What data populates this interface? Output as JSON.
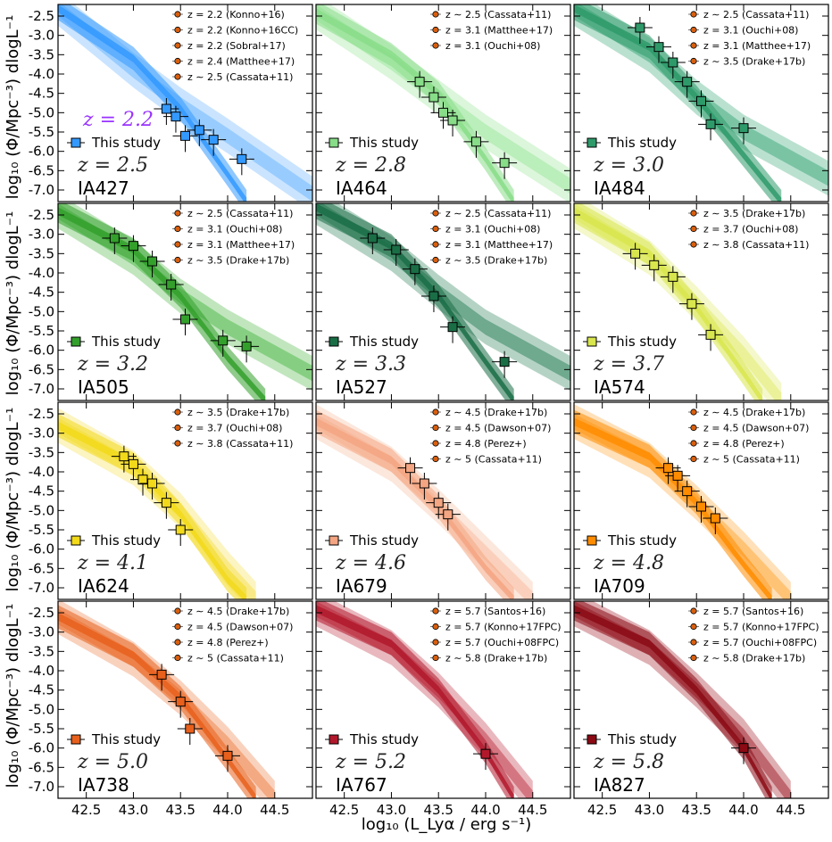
{
  "figure": {
    "xlabel": "log₁₀ (L_Lyα / erg s⁻¹)",
    "ylabel": "log₁₀ (Φ/Mpc⁻³) dlogL⁻¹",
    "xticks": [
      "42.5",
      "43.0",
      "43.5",
      "44.0",
      "44.5"
    ],
    "yticks": [
      "-2.5",
      "-3.0",
      "-3.5",
      "-4.0",
      "-4.5",
      "-5.0",
      "-5.5",
      "-6.0",
      "-6.5",
      "-7.0"
    ],
    "this_study_label": "This study",
    "extra_label_ia427": "z = 2.2"
  },
  "chart_data": [
    {
      "type": "scatter",
      "filter": "IA427",
      "z_label": "z = 2.5",
      "color": "#3399ff",
      "band": "#66b3ff",
      "xlim": [
        42.2,
        44.9
      ],
      "ylim": [
        -7.3,
        -2.2
      ],
      "legend": [
        "z = 2.2 (Konno+16)",
        "z = 2.2 (Konno+16CC)",
        "z = 2.2 (Sobral+17)",
        "z = 2.4 (Matthee+17)",
        "z ∼ 2.5 (Cassata+11)"
      ],
      "x": [
        43.35,
        43.45,
        43.55,
        43.7,
        43.85,
        44.15
      ],
      "y": [
        -4.9,
        -5.1,
        -5.6,
        -5.45,
        -5.7,
        -6.2
      ],
      "fit_bright": [
        [
          42.2,
          -2.3
        ],
        [
          43.0,
          -3.6
        ],
        [
          43.5,
          -4.9
        ],
        [
          44.0,
          -6.6
        ],
        [
          44.2,
          -7.3
        ]
      ],
      "fit_faint": [
        [
          42.2,
          -2.3
        ],
        [
          43.0,
          -3.9
        ],
        [
          43.5,
          -4.8
        ],
        [
          44.0,
          -5.6
        ],
        [
          44.9,
          -7.1
        ]
      ]
    },
    {
      "type": "scatter",
      "filter": "IA464",
      "z_label": "z = 2.8",
      "color": "#88dd88",
      "band": "#99e699",
      "xlim": [
        42.2,
        44.9
      ],
      "ylim": [
        -7.3,
        -2.2
      ],
      "legend": [
        "z ∼ 2.5 (Cassata+11)",
        "z = 3.1 (Matthee+17)",
        "z = 3.1 (Ouchi+08)"
      ],
      "x": [
        43.3,
        43.45,
        43.55,
        43.65,
        43.9,
        44.2
      ],
      "y": [
        -4.2,
        -4.6,
        -5.0,
        -5.2,
        -5.75,
        -6.3
      ],
      "fit_bright": [
        [
          42.2,
          -2.4
        ],
        [
          43.0,
          -3.5
        ],
        [
          43.5,
          -4.5
        ],
        [
          44.0,
          -6.2
        ],
        [
          44.3,
          -7.3
        ]
      ],
      "fit_faint": [
        [
          42.2,
          -2.4
        ],
        [
          43.0,
          -3.7
        ],
        [
          43.5,
          -4.6
        ],
        [
          44.0,
          -5.5
        ],
        [
          44.9,
          -6.9
        ]
      ]
    },
    {
      "type": "scatter",
      "filter": "IA484",
      "z_label": "z = 3.0",
      "color": "#2e9a6a",
      "band": "#3aa877",
      "xlim": [
        42.2,
        44.9
      ],
      "ylim": [
        -7.3,
        -2.2
      ],
      "legend": [
        "z ∼ 2.5 (Cassata+11)",
        "z = 3.1 (Ouchi+08)",
        "z = 3.1 (Matthee+17)",
        "z ∼ 3.5 (Drake+17b)"
      ],
      "x": [
        42.9,
        43.1,
        43.25,
        43.4,
        43.55,
        43.65,
        44.0
      ],
      "y": [
        -2.8,
        -3.3,
        -3.7,
        -4.2,
        -4.7,
        -5.3,
        -5.4
      ],
      "fit_bright": [
        [
          42.2,
          -2.3
        ],
        [
          43.0,
          -3.3
        ],
        [
          43.5,
          -4.6
        ],
        [
          44.0,
          -6.1
        ],
        [
          44.4,
          -7.3
        ]
      ],
      "fit_faint": [
        [
          42.2,
          -2.3
        ],
        [
          43.0,
          -3.5
        ],
        [
          43.5,
          -4.6
        ],
        [
          44.0,
          -5.5
        ],
        [
          44.9,
          -6.7
        ]
      ]
    },
    {
      "type": "scatter",
      "filter": "IA505",
      "z_label": "z = 3.2",
      "color": "#33a02c",
      "band": "#4cb845",
      "xlim": [
        42.2,
        44.9
      ],
      "ylim": [
        -7.3,
        -2.2
      ],
      "legend": [
        "z ∼ 2.5 (Cassata+11)",
        "z = 3.1 (Ouchi+08)",
        "z = 3.1 (Matthee+17)",
        "z ∼ 3.5 (Drake+17b)"
      ],
      "x": [
        42.8,
        43.0,
        43.2,
        43.4,
        43.55,
        43.95,
        44.2
      ],
      "y": [
        -3.1,
        -3.3,
        -3.7,
        -4.3,
        -5.2,
        -5.75,
        -5.9
      ],
      "fit_bright": [
        [
          42.2,
          -2.4
        ],
        [
          43.0,
          -3.4
        ],
        [
          43.5,
          -4.6
        ],
        [
          44.0,
          -6.2
        ],
        [
          44.4,
          -7.3
        ]
      ],
      "fit_faint": [
        [
          42.2,
          -2.4
        ],
        [
          43.0,
          -3.6
        ],
        [
          43.5,
          -4.6
        ],
        [
          44.0,
          -5.4
        ],
        [
          44.9,
          -6.6
        ]
      ]
    },
    {
      "type": "scatter",
      "filter": "IA527",
      "z_label": "z = 3.3",
      "color": "#1a6e46",
      "band": "#2a8058",
      "xlim": [
        42.2,
        44.9
      ],
      "ylim": [
        -7.3,
        -2.2
      ],
      "legend": [
        "z ∼ 2.5 (Cassata+11)",
        "z = 3.1 (Ouchi+08)",
        "z = 3.1 (Matthee+17)",
        "z ∼ 3.5 (Drake+17b)"
      ],
      "x": [
        42.8,
        43.05,
        43.25,
        43.45,
        43.65,
        44.2
      ],
      "y": [
        -3.1,
        -3.4,
        -3.9,
        -4.6,
        -5.4,
        -6.3
      ],
      "fit_bright": [
        [
          42.2,
          -2.3
        ],
        [
          43.0,
          -3.3
        ],
        [
          43.5,
          -4.6
        ],
        [
          44.0,
          -6.3
        ],
        [
          44.3,
          -7.3
        ]
      ],
      "fit_faint": [
        [
          42.2,
          -2.3
        ],
        [
          43.0,
          -3.5
        ],
        [
          43.5,
          -4.5
        ],
        [
          44.0,
          -5.4
        ],
        [
          44.9,
          -6.6
        ]
      ]
    },
    {
      "type": "scatter",
      "filter": "IA574",
      "z_label": "z = 3.7",
      "color": "#d9e64d",
      "band": "#e0ea66",
      "xlim": [
        42.2,
        44.9
      ],
      "ylim": [
        -7.3,
        -2.2
      ],
      "legend": [
        "z ∼ 3.5 (Drake+17b)",
        "z = 3.7 (Ouchi+08)",
        "z ∼ 3.8 (Cassata+11)"
      ],
      "x": [
        42.85,
        43.05,
        43.25,
        43.45,
        43.65
      ],
      "y": [
        -3.5,
        -3.8,
        -4.1,
        -4.8,
        -5.6
      ],
      "fit_bright": [
        [
          42.2,
          -2.4
        ],
        [
          43.0,
          -3.5
        ],
        [
          43.5,
          -4.9
        ],
        [
          44.0,
          -6.6
        ],
        [
          44.2,
          -7.3
        ]
      ],
      "fit_faint": [
        [
          42.2,
          -2.4
        ],
        [
          43.0,
          -3.6
        ],
        [
          43.5,
          -4.8
        ],
        [
          44.0,
          -6.1
        ],
        [
          44.4,
          -7.3
        ]
      ]
    },
    {
      "type": "scatter",
      "filter": "IA624",
      "z_label": "z = 4.1",
      "color": "#f2d91a",
      "band": "#f5e04d",
      "xlim": [
        42.2,
        44.9
      ],
      "ylim": [
        -7.3,
        -2.2
      ],
      "legend": [
        "z ∼ 3.5 (Drake+17b)",
        "z = 3.7 (Ouchi+08)",
        "z ∼ 3.8 (Cassata+11)"
      ],
      "x": [
        42.9,
        43.0,
        43.1,
        43.2,
        43.35,
        43.5
      ],
      "y": [
        -3.6,
        -3.8,
        -4.2,
        -4.3,
        -4.8,
        -5.5
      ],
      "fit_bright": [
        [
          42.2,
          -2.8
        ],
        [
          43.0,
          -3.8
        ],
        [
          43.5,
          -5.1
        ],
        [
          44.0,
          -6.8
        ],
        [
          44.2,
          -7.3
        ]
      ],
      "fit_faint": [
        [
          42.2,
          -2.8
        ],
        [
          43.0,
          -3.9
        ],
        [
          43.5,
          -5.0
        ],
        [
          44.0,
          -6.5
        ],
        [
          44.3,
          -7.3
        ]
      ]
    },
    {
      "type": "scatter",
      "filter": "IA679",
      "z_label": "z = 4.6",
      "color": "#f4a582",
      "band": "#f7b99c",
      "xlim": [
        42.2,
        44.9
      ],
      "ylim": [
        -7.3,
        -2.2
      ],
      "legend": [
        "z ∼ 4.5 (Drake+17b)",
        "z = 4.5 (Dawson+07)",
        "z = 4.8 (Perez+)",
        "z ∼ 5 (Cassata+11)"
      ],
      "x": [
        43.2,
        43.35,
        43.5,
        43.6
      ],
      "y": [
        -3.9,
        -4.3,
        -4.8,
        -5.1
      ],
      "fit_bright": [
        [
          42.2,
          -2.7
        ],
        [
          43.0,
          -3.7
        ],
        [
          43.5,
          -4.9
        ],
        [
          44.0,
          -6.5
        ],
        [
          44.3,
          -7.3
        ]
      ],
      "fit_faint": [
        [
          42.2,
          -2.7
        ],
        [
          43.0,
          -3.8
        ],
        [
          43.5,
          -4.9
        ],
        [
          44.0,
          -6.1
        ],
        [
          44.5,
          -7.3
        ]
      ]
    },
    {
      "type": "scatter",
      "filter": "IA709",
      "z_label": "z = 4.8",
      "color": "#ff8c00",
      "band": "#ffa533",
      "xlim": [
        42.2,
        44.9
      ],
      "ylim": [
        -7.3,
        -2.2
      ],
      "legend": [
        "z ∼ 4.5 (Drake+17b)",
        "z = 4.5 (Dawson+07)",
        "z = 4.8 (Perez+)",
        "z ∼ 5 (Cassata+11)"
      ],
      "x": [
        43.2,
        43.3,
        43.4,
        43.55,
        43.7
      ],
      "y": [
        -3.9,
        -4.1,
        -4.5,
        -4.9,
        -5.2
      ],
      "fit_bright": [
        [
          42.2,
          -2.7
        ],
        [
          43.0,
          -3.6
        ],
        [
          43.5,
          -4.8
        ],
        [
          44.0,
          -6.4
        ],
        [
          44.3,
          -7.3
        ]
      ],
      "fit_faint": [
        [
          42.2,
          -2.7
        ],
        [
          43.0,
          -3.7
        ],
        [
          43.5,
          -4.8
        ],
        [
          44.0,
          -6.0
        ],
        [
          44.5,
          -7.3
        ]
      ]
    },
    {
      "type": "scatter",
      "filter": "IA738",
      "z_label": "z = 5.0",
      "color": "#e8601c",
      "band": "#ee7f44",
      "xlim": [
        42.2,
        44.9
      ],
      "ylim": [
        -7.3,
        -2.2
      ],
      "legend": [
        "z ∼ 4.5 (Drake+17b)",
        "z = 4.5 (Dawson+07)",
        "z = 4.8 (Perez+)",
        "z ∼ 5 (Cassata+11)"
      ],
      "x": [
        43.3,
        43.5,
        43.6,
        44.0
      ],
      "y": [
        -4.1,
        -4.8,
        -5.5,
        -6.2
      ],
      "fit_bright": [
        [
          42.2,
          -2.6
        ],
        [
          43.0,
          -3.6
        ],
        [
          43.5,
          -4.7
        ],
        [
          44.0,
          -6.3
        ],
        [
          44.3,
          -7.3
        ]
      ],
      "fit_faint": [
        [
          42.2,
          -2.6
        ],
        [
          43.0,
          -3.7
        ],
        [
          43.5,
          -4.7
        ],
        [
          44.0,
          -5.9
        ],
        [
          44.5,
          -7.3
        ]
      ]
    },
    {
      "type": "scatter",
      "filter": "IA767",
      "z_label": "z = 5.2",
      "color": "#b2182b",
      "band": "#c03344",
      "xlim": [
        42.2,
        44.9
      ],
      "ylim": [
        -7.3,
        -2.2
      ],
      "legend": [
        "z = 5.7 (Santos+16)",
        "z = 5.7 (Konno+17FPC)",
        "z = 5.7 (Ouchi+08FPC)",
        "z ∼ 5.8 (Drake+17b)"
      ],
      "x": [
        44.0
      ],
      "y": [
        -6.15
      ],
      "fit_bright": [
        [
          42.2,
          -2.4
        ],
        [
          43.0,
          -3.3
        ],
        [
          43.5,
          -4.5
        ],
        [
          44.0,
          -6.1
        ],
        [
          44.3,
          -7.3
        ]
      ],
      "fit_faint": [
        [
          42.2,
          -2.4
        ],
        [
          43.0,
          -3.4
        ],
        [
          43.5,
          -4.5
        ],
        [
          44.0,
          -5.8
        ],
        [
          44.5,
          -7.3
        ]
      ]
    },
    {
      "type": "scatter",
      "filter": "IA827",
      "z_label": "z = 5.8",
      "color": "#8b0a14",
      "band": "#a01e28",
      "xlim": [
        42.2,
        44.9
      ],
      "ylim": [
        -7.3,
        -2.2
      ],
      "legend": [
        "z = 5.7 (Santos+16)",
        "z = 5.7 (Konno+17FPC)",
        "z = 5.7 (Ouchi+08FPC)",
        "z ∼ 5.8 (Drake+17b)"
      ],
      "x": [
        44.0
      ],
      "y": [
        -6.0
      ],
      "fit_bright": [
        [
          42.2,
          -2.4
        ],
        [
          43.0,
          -3.3
        ],
        [
          43.5,
          -4.5
        ],
        [
          44.0,
          -6.0
        ],
        [
          44.3,
          -7.3
        ]
      ],
      "fit_faint": [
        [
          42.2,
          -2.4
        ],
        [
          43.0,
          -3.4
        ],
        [
          43.5,
          -4.5
        ],
        [
          44.0,
          -5.7
        ],
        [
          44.5,
          -7.3
        ]
      ]
    }
  ]
}
